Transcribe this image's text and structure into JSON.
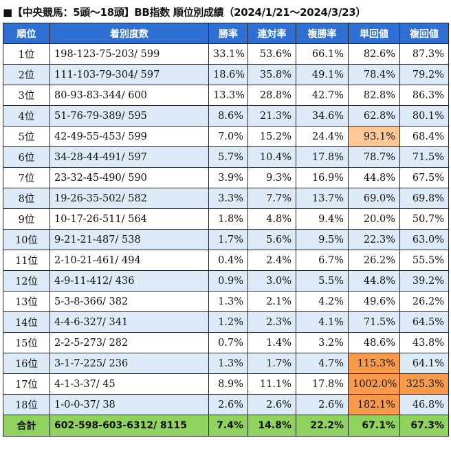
{
  "title": "■【中央競馬：5頭〜18頭】BB指数 順位別成績（2024/1/21〜2024/3/23）",
  "headers": [
    "順位",
    "着別度数",
    "勝率",
    "連対率",
    "複勝率",
    "単回値",
    "複回値"
  ],
  "rows": [
    {
      "rank": "1位",
      "record": "198-123-75-203/ 599",
      "win": "33.1%",
      "quinella": "53.6%",
      "show": "66.1%",
      "win_return": "82.6%",
      "show_return": "87.3%"
    },
    {
      "rank": "2位",
      "record": "111-103-79-304/ 597",
      "win": "18.6%",
      "quinella": "35.8%",
      "show": "49.1%",
      "win_return": "78.4%",
      "show_return": "79.2%"
    },
    {
      "rank": "3位",
      "record": "80-93-83-344/ 600",
      "win": "13.3%",
      "quinella": "28.8%",
      "show": "42.7%",
      "win_return": "82.8%",
      "show_return": "86.3%"
    },
    {
      "rank": "4位",
      "record": "51-76-79-389/ 595",
      "win": "8.6%",
      "quinella": "21.3%",
      "show": "34.6%",
      "win_return": "62.8%",
      "show_return": "80.1%"
    },
    {
      "rank": "5位",
      "record": "42-49-55-453/ 599",
      "win": "7.0%",
      "quinella": "15.2%",
      "show": "24.4%",
      "win_return": "93.1%",
      "show_return": "68.4%"
    },
    {
      "rank": "6位",
      "record": "34-28-44-491/ 597",
      "win": "5.7%",
      "quinella": "10.4%",
      "show": "17.8%",
      "win_return": "78.7%",
      "show_return": "71.5%"
    },
    {
      "rank": "7位",
      "record": "23-32-45-490/ 590",
      "win": "3.9%",
      "quinella": "9.3%",
      "show": "16.9%",
      "win_return": "44.8%",
      "show_return": "67.5%"
    },
    {
      "rank": "8位",
      "record": "19-26-35-502/ 582",
      "win": "3.3%",
      "quinella": "7.7%",
      "show": "13.7%",
      "win_return": "69.0%",
      "show_return": "69.8%"
    },
    {
      "rank": "9位",
      "record": "10-17-26-511/ 564",
      "win": "1.8%",
      "quinella": "4.8%",
      "show": "9.4%",
      "win_return": "20.0%",
      "show_return": "50.7%"
    },
    {
      "rank": "10位",
      "record": "9-21-21-487/ 538",
      "win": "1.7%",
      "quinella": "5.6%",
      "show": "9.5%",
      "win_return": "22.3%",
      "show_return": "63.0%"
    },
    {
      "rank": "11位",
      "record": "2-10-21-461/ 494",
      "win": "0.4%",
      "quinella": "2.4%",
      "show": "6.7%",
      "win_return": "26.2%",
      "show_return": "55.5%"
    },
    {
      "rank": "12位",
      "record": "4-9-11-412/ 436",
      "win": "0.9%",
      "quinella": "3.0%",
      "show": "5.5%",
      "win_return": "44.8%",
      "show_return": "39.2%"
    },
    {
      "rank": "13位",
      "record": "5-3-8-366/ 382",
      "win": "1.3%",
      "quinella": "2.1%",
      "show": "4.2%",
      "win_return": "49.6%",
      "show_return": "26.2%"
    },
    {
      "rank": "14位",
      "record": "4-4-6-327/ 341",
      "win": "1.2%",
      "quinella": "2.3%",
      "show": "4.1%",
      "win_return": "71.5%",
      "show_return": "64.5%"
    },
    {
      "rank": "15位",
      "record": "2-2-5-273/ 282",
      "win": "0.7%",
      "quinella": "1.4%",
      "show": "3.2%",
      "win_return": "48.6%",
      "show_return": "43.8%"
    },
    {
      "rank": "16位",
      "record": "3-1-7-225/ 236",
      "win": "1.3%",
      "quinella": "1.7%",
      "show": "4.7%",
      "win_return": "115.3%",
      "show_return": "64.1%"
    },
    {
      "rank": "17位",
      "record": "4-1-3-37/ 45",
      "win": "8.9%",
      "quinella": "11.1%",
      "show": "17.8%",
      "win_return": "1002.0%",
      "show_return": "325.3%"
    },
    {
      "rank": "18位",
      "record": "1-0-0-37/ 38",
      "win": "2.6%",
      "quinella": "2.6%",
      "show": "2.6%",
      "win_return": "182.1%",
      "show_return": "46.8%"
    }
  ],
  "total": {
    "rank": "合計",
    "record": "602-598-603-6312/ 8115",
    "win": "7.4%",
    "quinella": "14.8%",
    "show": "22.2%",
    "win_return": "67.1%",
    "show_return": "67.3%"
  },
  "colors": {
    "header": "#2e6fd1",
    "alt_row": "#ddeaf7",
    "total_row": "#8fd25e",
    "highlight_light": "#fcc896",
    "highlight_dark": "#f79a4a"
  }
}
